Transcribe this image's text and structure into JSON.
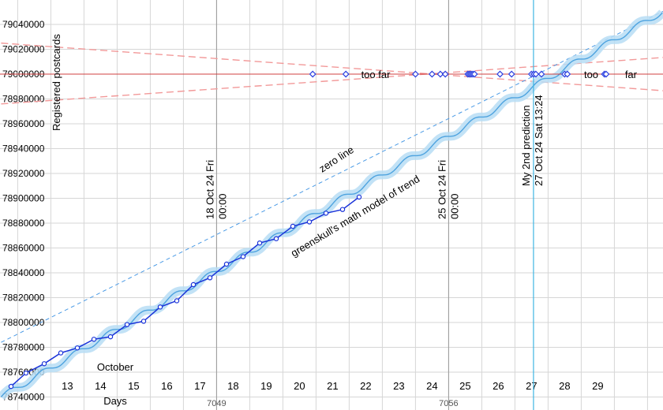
{
  "chart_data": {
    "type": "line",
    "ylabel": "Registered postcards",
    "xlabel": "Days",
    "month_label": "October",
    "ylim": [
      78740000,
      79050000
    ],
    "xlim": [
      11.0,
      31.3
    ],
    "grid": true,
    "y_ticks": [
      78740000,
      78760000,
      78780000,
      78800000,
      78820000,
      78840000,
      78860000,
      78880000,
      78900000,
      78920000,
      78940000,
      78960000,
      78980000,
      79000000,
      79020000,
      79040000
    ],
    "x_ticks": [
      {
        "x": 13,
        "label": "13"
      },
      {
        "x": 14,
        "label": "14"
      },
      {
        "x": 15,
        "label": "15"
      },
      {
        "x": 16,
        "label": "16"
      },
      {
        "x": 17,
        "label": "17"
      },
      {
        "x": 18,
        "label": "18"
      },
      {
        "x": 19,
        "label": "19"
      },
      {
        "x": 20,
        "label": "20"
      },
      {
        "x": 21,
        "label": "21"
      },
      {
        "x": 22,
        "label": "22"
      },
      {
        "x": 23,
        "label": "23"
      },
      {
        "x": 24,
        "label": "24"
      },
      {
        "x": 25,
        "label": "25"
      },
      {
        "x": 26,
        "label": "26"
      },
      {
        "x": 27,
        "label": "27"
      },
      {
        "x": 28,
        "label": "28"
      },
      {
        "x": 29,
        "label": "29"
      }
    ],
    "week_labels": [
      {
        "x": 17.5,
        "label": "7049"
      },
      {
        "x": 24.5,
        "label": "7056"
      }
    ],
    "reference_lines": [
      {
        "x": 17.5,
        "label_lines": [
          "18 Oct 24 Fri",
          "00:00"
        ]
      },
      {
        "x": 24.5,
        "label_lines": [
          "25 Oct 24 Fri",
          "00:00"
        ]
      }
    ],
    "target_value": 79000000,
    "prediction": {
      "x": 27.06,
      "label_lines": [
        "My 2nd prediction",
        "27 Oct 24 Sat 13:24"
      ]
    },
    "series": [
      {
        "name": "",
        "color": "#1a33d9",
        "points": [
          {
            "x": 11.3,
            "y": 78748500
          },
          {
            "x": 11.75,
            "y": 78759300
          },
          {
            "x": 12.3,
            "y": 78766800
          },
          {
            "x": 12.8,
            "y": 78775500
          },
          {
            "x": 13.3,
            "y": 78779500
          },
          {
            "x": 13.8,
            "y": 78786500
          },
          {
            "x": 14.3,
            "y": 78788500
          },
          {
            "x": 14.8,
            "y": 78798300
          },
          {
            "x": 15.3,
            "y": 78801000
          },
          {
            "x": 15.8,
            "y": 78812500
          },
          {
            "x": 16.3,
            "y": 78817500
          },
          {
            "x": 16.8,
            "y": 78830500
          },
          {
            "x": 17.3,
            "y": 78836000
          },
          {
            "x": 17.8,
            "y": 78847000
          },
          {
            "x": 18.3,
            "y": 78853000
          },
          {
            "x": 18.8,
            "y": 78864000
          },
          {
            "x": 19.3,
            "y": 78867500
          },
          {
            "x": 19.8,
            "y": 78877500
          },
          {
            "x": 20.3,
            "y": 78881000
          },
          {
            "x": 20.8,
            "y": 78888000
          },
          {
            "x": 21.3,
            "y": 78891000
          },
          {
            "x": 21.8,
            "y": 78901000
          }
        ]
      }
    ],
    "trend_model": {
      "label": "greenskull's math model of trend",
      "start": {
        "x": 11.0,
        "y": 78740000
      },
      "end": {
        "x": 31.0,
        "y": 79051000
      },
      "wave_amplitude": 2500,
      "wave_period_days": 1
    },
    "zero_line": {
      "label": "zero line",
      "start": {
        "x": 11.0,
        "y": 78784000
      },
      "end": {
        "x": 31.3,
        "y": 79055000
      }
    },
    "envelope": [
      {
        "start": {
          "x": 11.0,
          "y": 79025000
        },
        "end": {
          "x": 31.3,
          "y": 78986000
        }
      },
      {
        "start": {
          "x": 11.0,
          "y": 78976000
        },
        "end": {
          "x": 31.3,
          "y": 79014000
        }
      }
    ],
    "guesses": [
      {
        "x": 20.4,
        "y": 79000000
      },
      {
        "x": 21.4,
        "y": 79000000
      },
      {
        "x": 23.5,
        "y": 79000000
      },
      {
        "x": 24.0,
        "y": 79000000
      },
      {
        "x": 24.25,
        "y": 79000000
      },
      {
        "x": 24.4,
        "y": 79000000
      },
      {
        "x": 25.08,
        "y": 79000000
      },
      {
        "x": 25.13,
        "y": 79000000
      },
      {
        "x": 25.18,
        "y": 79000000
      },
      {
        "x": 25.23,
        "y": 79000000
      },
      {
        "x": 25.28,
        "y": 79000000
      },
      {
        "x": 26.05,
        "y": 79000000
      },
      {
        "x": 26.4,
        "y": 79000000
      },
      {
        "x": 27.0,
        "y": 79000000
      },
      {
        "x": 27.07,
        "y": 79000000
      },
      {
        "x": 27.13,
        "y": 79000000
      },
      {
        "x": 27.3,
        "y": 79000000
      },
      {
        "x": 28.0,
        "y": 79000000
      },
      {
        "x": 28.08,
        "y": 79000000
      },
      {
        "x": 29.2,
        "y": 79000000
      },
      {
        "x": 29.25,
        "y": 79000000
      }
    ],
    "annotations": [
      {
        "text": "too far",
        "x": 22.3,
        "y": 79000000
      },
      {
        "text": "too",
        "x": 28.8,
        "y": 79000000
      },
      {
        "text": "far",
        "x": 30.0,
        "y": 79000000
      }
    ],
    "colors": {
      "grid": "#d6d6d6",
      "vline": "#9a9a9a",
      "target": "#d04040",
      "envelope": "#f29999",
      "zero_line": "#4b9be6",
      "prediction": "#3fb6e3",
      "band": "#b7ddf5",
      "model": "#4ea3df",
      "data": "#1a33d9"
    }
  }
}
